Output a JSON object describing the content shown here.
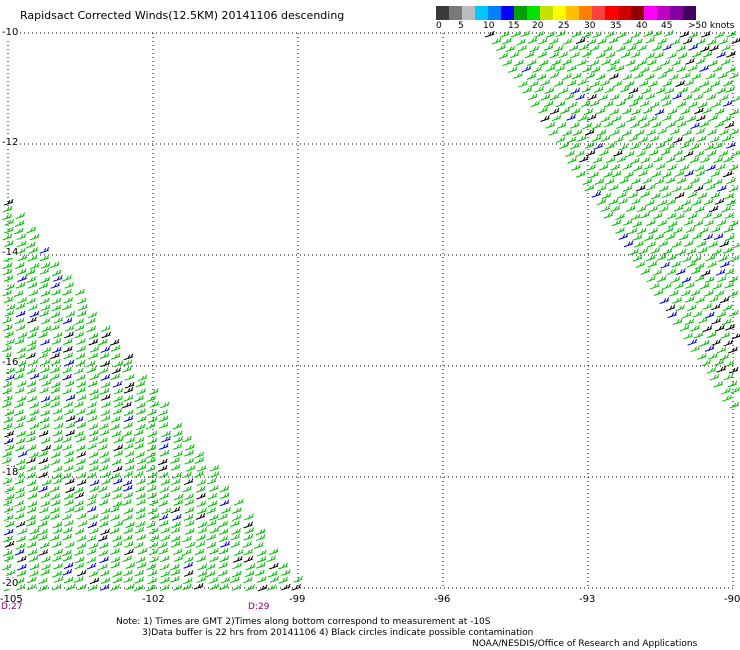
{
  "title": "Rapidsact Corrected Winds(12.5KM) 20141106 descending",
  "legend": {
    "colors": [
      "#3a3a3a",
      "#7a7a7a",
      "#bdbdbd",
      "#00c8ff",
      "#0080ff",
      "#0000ff",
      "#00a000",
      "#00e000",
      "#c8e000",
      "#ffff00",
      "#ffc000",
      "#ff8000",
      "#ff4040",
      "#ff0000",
      "#d00000",
      "#900000",
      "#ff00ff",
      "#c000c0",
      "#8000a0",
      "#400060"
    ],
    "labels": [
      "0",
      "5",
      "10",
      "15",
      "20",
      "25",
      "30",
      "35",
      "40",
      "45",
      ">50 knots"
    ]
  },
  "lat_labels": [
    "-10",
    "-12",
    "-14",
    "-16",
    "-18",
    "-20"
  ],
  "lon_labels": [
    "-105",
    "-102",
    "-99",
    "-96",
    "-93",
    "-90"
  ],
  "orbit_times": [
    "D:27",
    "D:29"
  ],
  "notes": [
    "Note: 1) Times are GMT 2)Times along bottom correspond to measurement at -10S",
    "3)Data buffer is 22 hrs from 20141106 4) Black circles indicate possible contamination"
  ],
  "credit": "NOAA/NESDIS/Office of Research and Applications",
  "colors": {
    "wind_green": "#00c000",
    "wind_blue": "#0000d0",
    "wind_black": "#000000",
    "grid": "#000000"
  }
}
